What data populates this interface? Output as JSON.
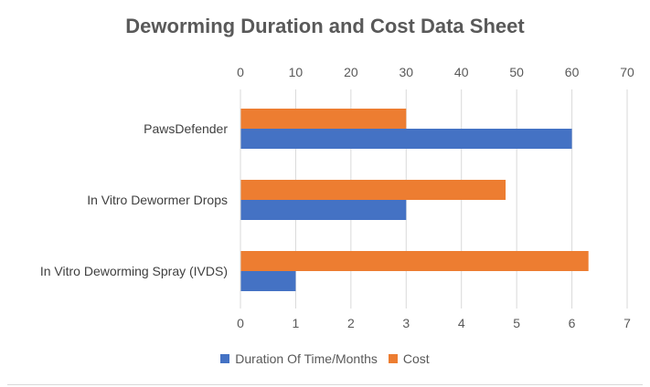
{
  "chart_data": {
    "type": "bar",
    "orientation": "horizontal",
    "title": "Deworming Duration and Cost Data Sheet",
    "categories": [
      "PawsDefender",
      "In Vitro Dewormer Drops",
      "In Vitro Deworming Spray (IVDS)"
    ],
    "series": [
      {
        "name": "Cost",
        "axis": "top",
        "color": "#ED7D31",
        "values": [
          30,
          48,
          63
        ]
      },
      {
        "name": "Duration Of Time/Months",
        "axis": "bottom",
        "color": "#4472C4",
        "values": [
          6,
          3,
          1
        ]
      }
    ],
    "top_axis": {
      "min": 0,
      "max": 70,
      "ticks": [
        0,
        10,
        20,
        30,
        40,
        50,
        60,
        70
      ]
    },
    "bottom_axis": {
      "min": 0,
      "max": 7,
      "ticks": [
        0,
        1,
        2,
        3,
        4,
        5,
        6,
        7
      ]
    },
    "legend": {
      "position": "bottom",
      "items": [
        {
          "label": "Duration Of Time/Months",
          "color": "#4472C4"
        },
        {
          "label": "Cost",
          "color": "#ED7D31"
        }
      ]
    },
    "grid": true
  }
}
